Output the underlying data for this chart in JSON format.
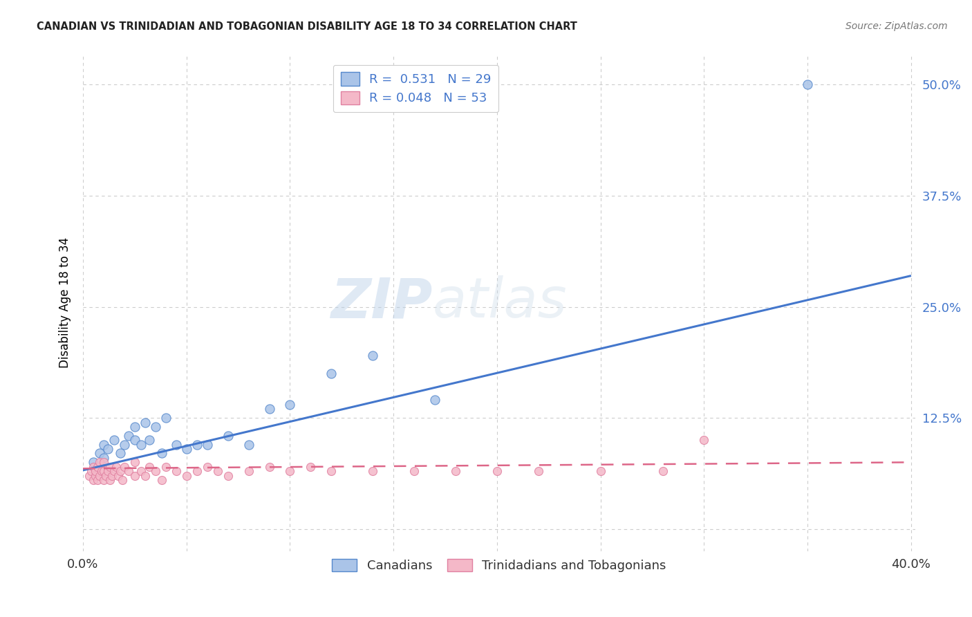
{
  "title": "CANADIAN VS TRINIDADIAN AND TOBAGONIAN DISABILITY AGE 18 TO 34 CORRELATION CHART",
  "source": "Source: ZipAtlas.com",
  "ylabel": "Disability Age 18 to 34",
  "x_min": 0.0,
  "x_max": 0.4,
  "y_min": -0.025,
  "y_max": 0.535,
  "y_ticks": [
    0.0,
    0.125,
    0.25,
    0.375,
    0.5
  ],
  "y_tick_labels": [
    "",
    "12.5%",
    "25.0%",
    "37.5%",
    "50.0%"
  ],
  "x_ticks": [
    0.0,
    0.05,
    0.1,
    0.15,
    0.2,
    0.25,
    0.3,
    0.35,
    0.4
  ],
  "grid_color": "#cccccc",
  "background_color": "#ffffff",
  "canadian_color": "#aac4e8",
  "canadian_edge": "#5588cc",
  "trinidadian_color": "#f4b8c8",
  "trinidadian_edge": "#e080a0",
  "canadian_line_color": "#4477cc",
  "trinidadian_line_color": "#dd6688",
  "R_canadian": 0.531,
  "N_canadian": 29,
  "R_trinidadian": 0.048,
  "N_trinidadian": 53,
  "legend_label_canadian": "Canadians",
  "legend_label_trinidadian": "Trinidadians and Tobagonians",
  "watermark_zip": "ZIP",
  "watermark_atlas": "atlas",
  "canadian_x": [
    0.005,
    0.008,
    0.01,
    0.01,
    0.012,
    0.015,
    0.018,
    0.02,
    0.022,
    0.025,
    0.025,
    0.028,
    0.03,
    0.032,
    0.035,
    0.038,
    0.04,
    0.045,
    0.05,
    0.055,
    0.06,
    0.07,
    0.08,
    0.09,
    0.1,
    0.12,
    0.14,
    0.17,
    0.35
  ],
  "canadian_y": [
    0.075,
    0.085,
    0.08,
    0.095,
    0.09,
    0.1,
    0.085,
    0.095,
    0.105,
    0.1,
    0.115,
    0.095,
    0.12,
    0.1,
    0.115,
    0.085,
    0.125,
    0.095,
    0.09,
    0.095,
    0.095,
    0.105,
    0.095,
    0.135,
    0.14,
    0.175,
    0.195,
    0.145,
    0.5
  ],
  "trinidadian_x": [
    0.003,
    0.004,
    0.005,
    0.005,
    0.006,
    0.006,
    0.007,
    0.007,
    0.008,
    0.008,
    0.009,
    0.01,
    0.01,
    0.01,
    0.011,
    0.012,
    0.013,
    0.013,
    0.014,
    0.015,
    0.016,
    0.017,
    0.018,
    0.019,
    0.02,
    0.022,
    0.025,
    0.025,
    0.028,
    0.03,
    0.032,
    0.035,
    0.038,
    0.04,
    0.045,
    0.05,
    0.055,
    0.06,
    0.065,
    0.07,
    0.08,
    0.09,
    0.1,
    0.11,
    0.12,
    0.14,
    0.16,
    0.18,
    0.2,
    0.22,
    0.25,
    0.28,
    0.3
  ],
  "trinidadian_y": [
    0.06,
    0.065,
    0.055,
    0.07,
    0.06,
    0.065,
    0.055,
    0.07,
    0.06,
    0.075,
    0.065,
    0.055,
    0.065,
    0.075,
    0.06,
    0.065,
    0.055,
    0.07,
    0.06,
    0.065,
    0.07,
    0.06,
    0.065,
    0.055,
    0.07,
    0.065,
    0.06,
    0.075,
    0.065,
    0.06,
    0.07,
    0.065,
    0.055,
    0.07,
    0.065,
    0.06,
    0.065,
    0.07,
    0.065,
    0.06,
    0.065,
    0.07,
    0.065,
    0.07,
    0.065,
    0.065,
    0.065,
    0.065,
    0.065,
    0.065,
    0.065,
    0.065,
    0.1
  ],
  "can_line_x0": 0.0,
  "can_line_x1": 0.4,
  "can_line_y0": 0.066,
  "can_line_y1": 0.285,
  "tri_line_x0": 0.0,
  "tri_line_x1": 0.4,
  "tri_line_y0": 0.068,
  "tri_line_y1": 0.075
}
